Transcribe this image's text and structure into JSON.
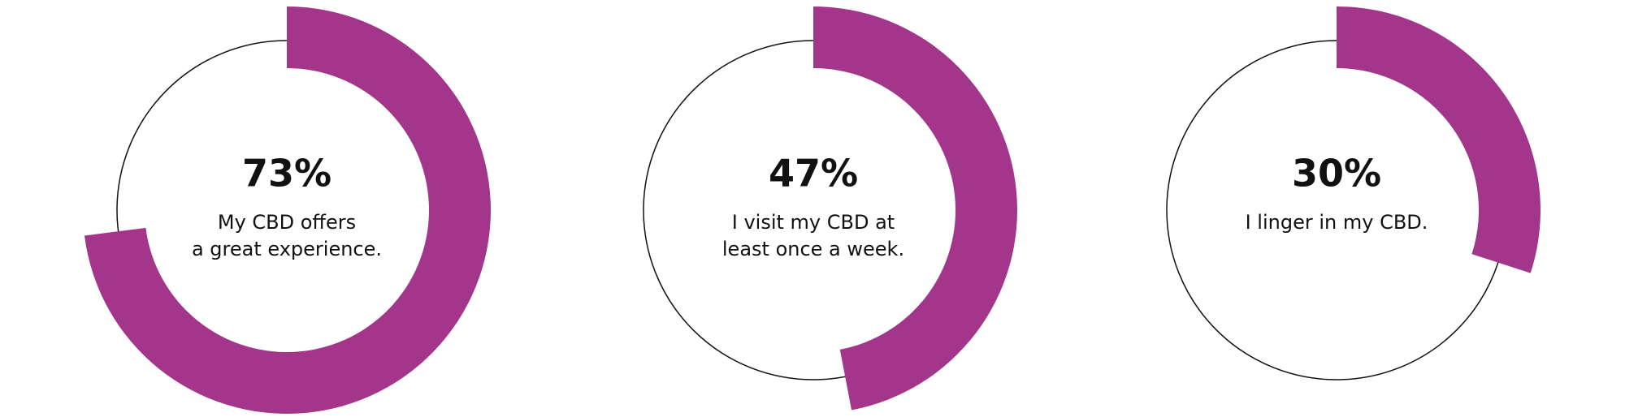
{
  "chart_data": [
    {
      "type": "donut",
      "values": [
        73
      ],
      "value_labels": [
        "73%"
      ],
      "caption": [
        "My CBD offers",
        "a great experience."
      ],
      "color": "#a3368a"
    },
    {
      "type": "donut",
      "values": [
        47
      ],
      "value_labels": [
        "47%"
      ],
      "caption": [
        "I visit my CBD at",
        "least once a week."
      ],
      "color": "#a3368a"
    },
    {
      "type": "donut",
      "values": [
        30
      ],
      "value_labels": [
        "30%"
      ],
      "caption": [
        "I linger in my CBD."
      ],
      "color": "#a3368a"
    }
  ]
}
